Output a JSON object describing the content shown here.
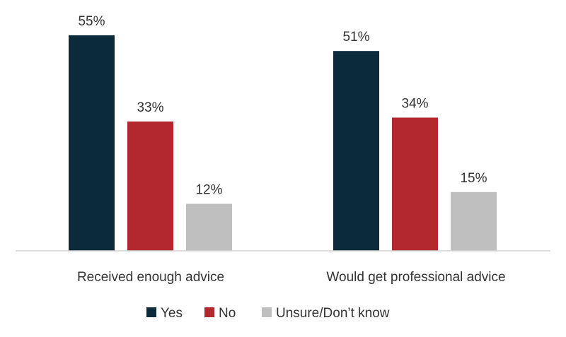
{
  "chart_data": {
    "type": "bar",
    "categories": [
      "Received enough advice",
      "Would get professional advice"
    ],
    "series": [
      {
        "name": "Yes",
        "values": [
          55,
          51
        ],
        "labels": [
          "55%",
          "51%"
        ],
        "color": "#0b2a3a"
      },
      {
        "name": "No",
        "values": [
          33,
          34
        ],
        "labels": [
          "33%",
          "34%"
        ],
        "color": "#b3282f"
      },
      {
        "name": "Unsure/Don’t know",
        "values": [
          12,
          15
        ],
        "labels": [
          "12%",
          "15%"
        ],
        "color": "#bfbfbf"
      }
    ],
    "ylim": [
      0,
      55
    ],
    "grid": false,
    "legend_position": "bottom",
    "axis_color": "#d0d0d0"
  }
}
